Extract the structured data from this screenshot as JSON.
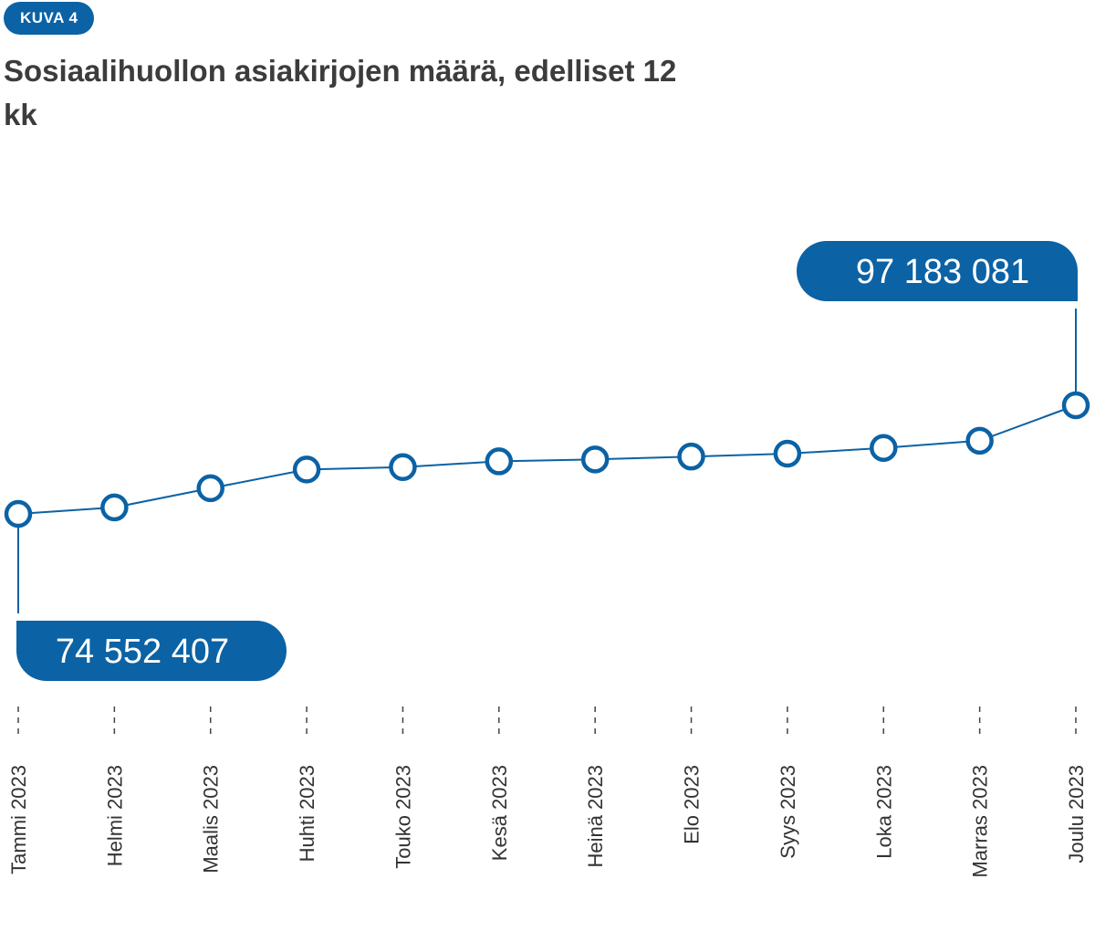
{
  "figure": {
    "badge": "KUVA 4",
    "title": "Sosiaalihuollon asiakirjojen määrä, edelliset 12 kk"
  },
  "colors": {
    "accent": "#0b62a4",
    "title_text": "#3c3c3c",
    "axis_text": "#333333",
    "marker_fill": "#ffffff"
  },
  "chart_data": {
    "type": "line",
    "title": "Sosiaalihuollon asiakirjojen määrä, edelliset 12 kk",
    "xlabel": "",
    "ylabel": "",
    "categories": [
      "Tammi 2023",
      "Helmi 2023",
      "Maalis 2023",
      "Huhti 2023",
      "Touko 2023",
      "Kesä 2023",
      "Heinä 2023",
      "Elo 2023",
      "Syys 2023",
      "Loka 2023",
      "Marras 2023",
      "Joulu 2023"
    ],
    "series": [
      {
        "values": [
          74552407,
          75900000,
          79900000,
          83800000,
          84300000,
          85500000,
          85900000,
          86500000,
          87100000,
          88300000,
          89800000,
          97183081
        ]
      }
    ],
    "ylim": [
      74552407,
      97183081
    ],
    "grid": false,
    "legend": "none",
    "callouts": [
      {
        "index": 0,
        "label": "74 552 407",
        "placement": "below-right"
      },
      {
        "index": 11,
        "label": "97 183 081",
        "placement": "above-left"
      }
    ]
  }
}
